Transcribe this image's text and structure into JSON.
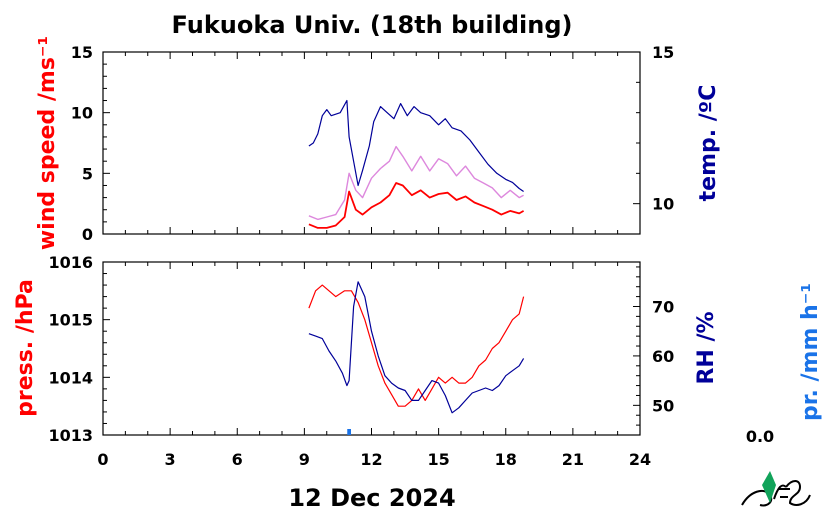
{
  "chart_data": {
    "type": "line",
    "title": "Fukuoka Univ. (18th building)",
    "xlabel": "12 Dec 2024",
    "xlim": [
      0,
      24
    ],
    "xticks": [
      "0",
      "3",
      "6",
      "9",
      "12",
      "15",
      "18",
      "21",
      "24"
    ],
    "precip_value": "0.0",
    "colors": {
      "red": "#ff0000",
      "navy": "#000099",
      "blue": "#1a73e8",
      "pink": "#dd88dd"
    },
    "panels": [
      {
        "name": "top",
        "left_axis": {
          "label": "wind speed /ms⁻¹",
          "ylim": [
            0,
            15
          ],
          "ticks": [
            "0",
            "5",
            "10",
            "15"
          ]
        },
        "right_axis": {
          "label": "temp. /ºC",
          "ylim": [
            9,
            15
          ],
          "ticks": [
            "10",
            "15"
          ]
        },
        "series": [
          {
            "axis": "left",
            "role": "wind-avg",
            "color": "#ff0000",
            "x": [
              9.2,
              9.6,
              10.0,
              10.4,
              10.8,
              11.0,
              11.3,
              11.6,
              12.0,
              12.4,
              12.8,
              13.1,
              13.4,
              13.8,
              14.2,
              14.6,
              15.0,
              15.4,
              15.8,
              16.2,
              16.6,
              17.0,
              17.4,
              17.8,
              18.2,
              18.6,
              18.8
            ],
            "y": [
              0.8,
              0.5,
              0.5,
              0.7,
              1.4,
              3.5,
              2.0,
              1.6,
              2.2,
              2.6,
              3.2,
              4.2,
              4.0,
              3.2,
              3.6,
              3.0,
              3.3,
              3.4,
              2.8,
              3.1,
              2.6,
              2.3,
              2.0,
              1.6,
              1.9,
              1.7,
              1.9
            ]
          },
          {
            "axis": "left",
            "role": "wind-gust",
            "color": "#dd88dd",
            "x": [
              9.2,
              9.6,
              10.0,
              10.4,
              10.8,
              11.0,
              11.3,
              11.6,
              12.0,
              12.4,
              12.8,
              13.1,
              13.4,
              13.8,
              14.2,
              14.6,
              15.0,
              15.4,
              15.8,
              16.2,
              16.6,
              17.0,
              17.4,
              17.8,
              18.2,
              18.6,
              18.8
            ],
            "y": [
              1.5,
              1.2,
              1.4,
              1.6,
              2.8,
              5.0,
              3.6,
              3.0,
              4.6,
              5.4,
              6.0,
              7.2,
              6.4,
              5.2,
              6.4,
              5.2,
              6.2,
              5.8,
              4.8,
              5.6,
              4.6,
              4.2,
              3.8,
              3.0,
              3.6,
              3.0,
              3.2
            ]
          },
          {
            "axis": "right",
            "role": "temperature",
            "color": "#000099",
            "x": [
              9.2,
              9.4,
              9.6,
              9.8,
              10.0,
              10.2,
              10.6,
              10.9,
              11.0,
              11.2,
              11.4,
              11.6,
              11.9,
              12.1,
              12.4,
              12.7,
              13.0,
              13.3,
              13.6,
              13.9,
              14.2,
              14.6,
              15.0,
              15.3,
              15.6,
              16.0,
              16.4,
              16.8,
              17.2,
              17.6,
              18.0,
              18.3,
              18.6,
              18.8
            ],
            "y": [
              11.9,
              12.0,
              12.3,
              12.9,
              13.1,
              12.9,
              13.0,
              13.4,
              12.2,
              11.4,
              10.6,
              11.1,
              11.9,
              12.7,
              13.2,
              13.0,
              12.8,
              13.3,
              12.9,
              13.2,
              13.0,
              12.9,
              12.6,
              12.8,
              12.5,
              12.4,
              12.1,
              11.7,
              11.3,
              11.0,
              10.8,
              10.7,
              10.5,
              10.4
            ]
          }
        ]
      },
      {
        "name": "bottom",
        "left_axis": {
          "label": "press. /hPa",
          "ylim": [
            1013,
            1016
          ],
          "ticks": [
            "1013",
            "1014",
            "1015",
            "1016"
          ]
        },
        "right_axis": {
          "label": "RH /%",
          "ylim": [
            44,
            79
          ],
          "ticks": [
            "50",
            "60",
            "70"
          ]
        },
        "far_right_axis": {
          "label": "pr. /mm h⁻¹"
        },
        "series": [
          {
            "axis": "left",
            "role": "pressure",
            "color": "#ff0000",
            "x": [
              9.2,
              9.5,
              9.8,
              10.1,
              10.4,
              10.8,
              11.1,
              11.4,
              11.7,
              12.0,
              12.3,
              12.6,
              12.9,
              13.2,
              13.5,
              13.8,
              14.1,
              14.4,
              14.7,
              15.0,
              15.3,
              15.6,
              15.9,
              16.2,
              16.5,
              16.8,
              17.1,
              17.4,
              17.7,
              18.0,
              18.3,
              18.6,
              18.8
            ],
            "y": [
              1015.2,
              1015.5,
              1015.6,
              1015.5,
              1015.4,
              1015.5,
              1015.5,
              1015.3,
              1015.0,
              1014.6,
              1014.2,
              1013.9,
              1013.7,
              1013.5,
              1013.5,
              1013.6,
              1013.8,
              1013.6,
              1013.8,
              1014.0,
              1013.9,
              1014.0,
              1013.9,
              1013.9,
              1014.0,
              1014.2,
              1014.3,
              1014.5,
              1014.6,
              1014.8,
              1015.0,
              1015.1,
              1015.4
            ]
          },
          {
            "axis": "right",
            "role": "relative-humidity",
            "color": "#000099",
            "x": [
              9.2,
              9.5,
              9.8,
              10.1,
              10.4,
              10.7,
              10.9,
              11.0,
              11.2,
              11.4,
              11.7,
              12.0,
              12.3,
              12.6,
              12.9,
              13.2,
              13.5,
              13.8,
              14.1,
              14.4,
              14.7,
              15.0,
              15.3,
              15.6,
              15.9,
              16.2,
              16.5,
              16.8,
              17.1,
              17.4,
              17.7,
              18.0,
              18.3,
              18.6,
              18.8
            ],
            "y": [
              64.5,
              64.0,
              63.5,
              61.0,
              59.0,
              56.5,
              54.0,
              55.0,
              70.0,
              75.0,
              72.0,
              65.0,
              60.0,
              56.0,
              54.5,
              53.5,
              53.0,
              51.0,
              51.0,
              53.0,
              55.0,
              54.5,
              52.0,
              48.5,
              49.5,
              51.0,
              52.5,
              53.0,
              53.5,
              53.0,
              54.0,
              56.0,
              57.0,
              58.0,
              59.5
            ]
          },
          {
            "axis": "precip",
            "role": "precipitation",
            "color": "#1a73e8",
            "x": [
              10.95,
              11.0,
              11.05
            ],
            "y": [
              0,
              0,
              0
            ]
          }
        ]
      }
    ]
  }
}
